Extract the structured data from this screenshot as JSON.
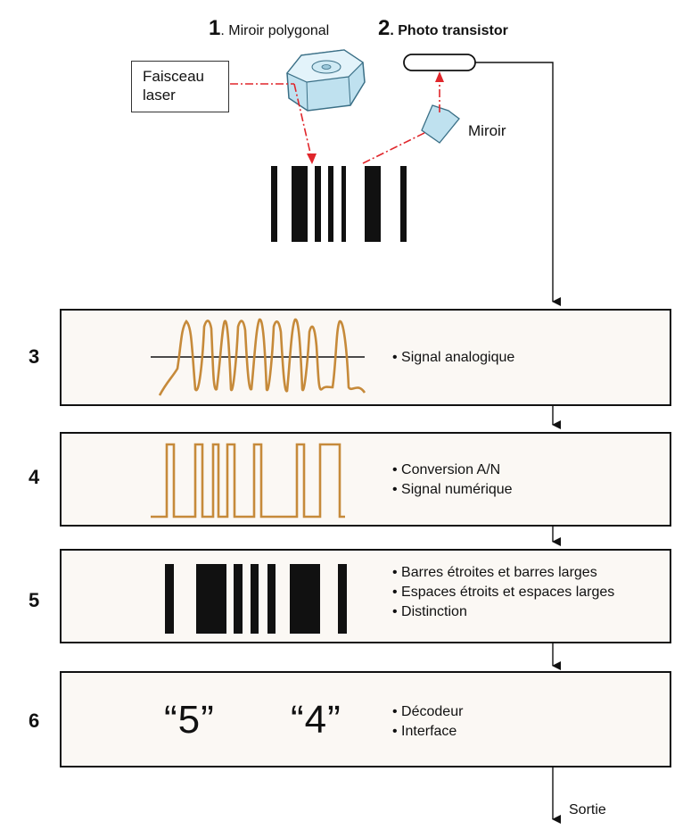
{
  "top": {
    "mirror_poly_num": "1",
    "mirror_poly_label": ". Miroir polygonal",
    "phototransistor_num": "2",
    "phototransistor_label": ". Photo transistor",
    "laser_line1": "Faisceau",
    "laser_line2": "laser",
    "miroir_label": "Miroir"
  },
  "steps": [
    {
      "number": "3",
      "bullets": [
        "• Signal analogique"
      ]
    },
    {
      "number": "4",
      "bullets": [
        "• Conversion A/N",
        "• Signal numérique"
      ]
    },
    {
      "number": "5",
      "bullets": [
        "• Barres étroites et barres larges",
        "• Espaces étroits et espaces larges",
        "• Distinction"
      ]
    },
    {
      "number": "6",
      "bullets": [
        "• Décodeur",
        "• Interface"
      ],
      "digit1": "“5”",
      "digit2": "“4”"
    }
  ],
  "output_label": "Sortie",
  "colors": {
    "signal": "#c68a3a",
    "laser": "#e0262b",
    "mirror_fill": "#d6ecf5",
    "ink": "#111111"
  }
}
